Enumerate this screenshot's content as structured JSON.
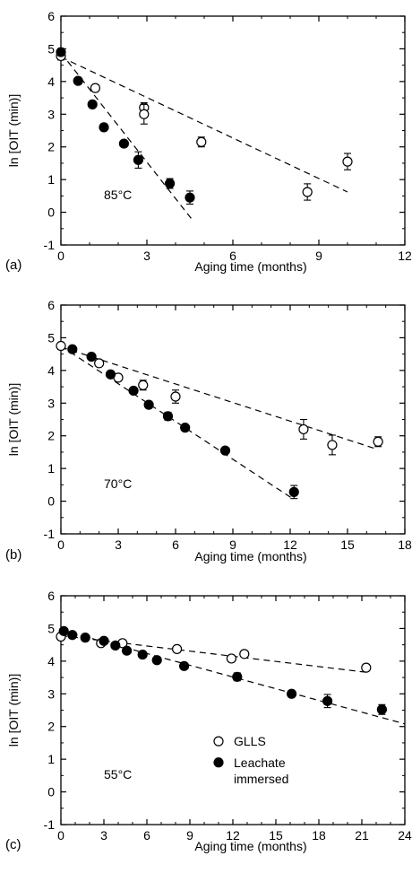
{
  "chart_data": [
    {
      "type": "scatter",
      "panel_label": "(a)",
      "temperature_label": "85°C",
      "xlabel": "Aging time  (months)",
      "ylabel": "ln [OIT (min)]",
      "xlim": [
        0,
        12
      ],
      "ylim": [
        -1,
        6
      ],
      "xticks": [
        "0",
        "3",
        "6",
        "9",
        "12"
      ],
      "yticks": [
        "-1",
        "0",
        "1",
        "2",
        "3",
        "4",
        "5",
        "6"
      ],
      "series": [
        {
          "name": "GLLS",
          "marker": "open-circle",
          "points": [
            {
              "x": 0,
              "y": 4.78,
              "err": 0.12
            },
            {
              "x": 1.2,
              "y": 3.8,
              "err": 0
            },
            {
              "x": 2.9,
              "y": 3.2,
              "err": 0.15
            },
            {
              "x": 2.9,
              "y": 3.0,
              "err": 0.3
            },
            {
              "x": 4.9,
              "y": 2.15,
              "err": 0.15
            },
            {
              "x": 8.6,
              "y": 0.62,
              "err": 0.25
            },
            {
              "x": 10.0,
              "y": 1.55,
              "err": 0.25
            }
          ],
          "fit": [
            [
              0,
              4.75
            ],
            [
              10,
              0.62
            ]
          ]
        },
        {
          "name": "Leachate immersed",
          "marker": "filled-circle",
          "points": [
            {
              "x": 0,
              "y": 4.9,
              "err": 0.1
            },
            {
              "x": 0.6,
              "y": 4.02,
              "err": 0
            },
            {
              "x": 1.1,
              "y": 3.3,
              "err": 0
            },
            {
              "x": 1.5,
              "y": 2.6,
              "err": 0.1
            },
            {
              "x": 2.2,
              "y": 2.1,
              "err": 0
            },
            {
              "x": 2.7,
              "y": 1.6,
              "err": 0.25
            },
            {
              "x": 3.8,
              "y": 0.88,
              "err": 0.15
            },
            {
              "x": 4.5,
              "y": 0.45,
              "err": 0.2
            }
          ],
          "fit": [
            [
              0,
              4.88
            ],
            [
              4.6,
              -0.25
            ]
          ]
        }
      ]
    },
    {
      "type": "scatter",
      "panel_label": "(b)",
      "temperature_label": "70°C",
      "xlabel": "Aging time   (months)",
      "ylabel": "ln [OIT (min)]",
      "xlim": [
        0,
        18
      ],
      "ylim": [
        -1,
        6
      ],
      "xticks": [
        "0",
        "3",
        "6",
        "9",
        "12",
        "15",
        "18"
      ],
      "yticks": [
        "-1",
        "0",
        "1",
        "2",
        "3",
        "4",
        "5",
        "6"
      ],
      "series": [
        {
          "name": "GLLS",
          "marker": "open-circle",
          "points": [
            {
              "x": 0,
              "y": 4.75,
              "err": 0.1
            },
            {
              "x": 2,
              "y": 4.22,
              "err": 0
            },
            {
              "x": 3,
              "y": 3.78,
              "err": 0
            },
            {
              "x": 4.3,
              "y": 3.55,
              "err": 0.15
            },
            {
              "x": 6,
              "y": 3.2,
              "err": 0.2
            },
            {
              "x": 12.7,
              "y": 2.2,
              "err": 0.3
            },
            {
              "x": 14.2,
              "y": 1.72,
              "err": 0.3
            },
            {
              "x": 16.6,
              "y": 1.82,
              "err": 0.15
            }
          ],
          "fit": [
            [
              0,
              4.72
            ],
            [
              16.6,
              1.58
            ]
          ]
        },
        {
          "name": "Leachate immersed",
          "marker": "filled-circle",
          "points": [
            {
              "x": 0.6,
              "y": 4.65,
              "err": 0
            },
            {
              "x": 1.6,
              "y": 4.42,
              "err": 0
            },
            {
              "x": 2.6,
              "y": 3.88,
              "err": 0
            },
            {
              "x": 3.8,
              "y": 3.38,
              "err": 0
            },
            {
              "x": 4.6,
              "y": 2.95,
              "err": 0
            },
            {
              "x": 5.6,
              "y": 2.6,
              "err": 0.12
            },
            {
              "x": 6.5,
              "y": 2.25,
              "err": 0
            },
            {
              "x": 8.6,
              "y": 1.55,
              "err": 0
            },
            {
              "x": 12.2,
              "y": 0.28,
              "err": 0.2
            }
          ],
          "fit": [
            [
              0,
              4.75
            ],
            [
              12.2,
              0.05
            ]
          ]
        }
      ]
    },
    {
      "type": "scatter",
      "panel_label": "(c)",
      "temperature_label": "55°C",
      "xlabel": "Aging time  (months)",
      "ylabel": "ln [OIT (min)]",
      "xlim": [
        0,
        24
      ],
      "ylim": [
        -1,
        6
      ],
      "xticks": [
        "0",
        "3",
        "6",
        "9",
        "12",
        "15",
        "18",
        "21",
        "24"
      ],
      "yticks": [
        "-1",
        "0",
        "1",
        "2",
        "3",
        "4",
        "5",
        "6"
      ],
      "legend": [
        {
          "label": "GLLS",
          "marker": "open-circle"
        },
        {
          "label": "Leachate",
          "label2": "immersed",
          "marker": "filled-circle"
        }
      ],
      "series": [
        {
          "name": "GLLS",
          "marker": "open-circle",
          "points": [
            {
              "x": 0,
              "y": 4.75,
              "err": 0
            },
            {
              "x": 2.8,
              "y": 4.55,
              "err": 0
            },
            {
              "x": 4.3,
              "y": 4.55,
              "err": 0
            },
            {
              "x": 8.1,
              "y": 4.37,
              "err": 0
            },
            {
              "x": 11.9,
              "y": 4.08,
              "err": 0
            },
            {
              "x": 12.8,
              "y": 4.22,
              "err": 0
            },
            {
              "x": 21.3,
              "y": 3.8,
              "err": 0.1
            }
          ],
          "fit": [
            [
              0,
              4.78
            ],
            [
              21.5,
              3.65
            ]
          ]
        },
        {
          "name": "Leachate immersed",
          "marker": "filled-circle",
          "points": [
            {
              "x": 0.2,
              "y": 4.92,
              "err": 0
            },
            {
              "x": 0.8,
              "y": 4.8,
              "err": 0
            },
            {
              "x": 1.7,
              "y": 4.72,
              "err": 0
            },
            {
              "x": 3.0,
              "y": 4.62,
              "err": 0
            },
            {
              "x": 3.8,
              "y": 4.48,
              "err": 0
            },
            {
              "x": 4.6,
              "y": 4.32,
              "err": 0
            },
            {
              "x": 5.7,
              "y": 4.2,
              "err": 0
            },
            {
              "x": 6.7,
              "y": 4.03,
              "err": 0
            },
            {
              "x": 8.6,
              "y": 3.85,
              "err": 0
            },
            {
              "x": 12.3,
              "y": 3.52,
              "err": 0.12
            },
            {
              "x": 16.1,
              "y": 3.0,
              "err": 0.1
            },
            {
              "x": 18.6,
              "y": 2.78,
              "err": 0.2
            },
            {
              "x": 22.4,
              "y": 2.52,
              "err": 0.15
            }
          ],
          "fit": [
            [
              0,
              4.95
            ],
            [
              24,
              2.08
            ]
          ]
        }
      ]
    }
  ]
}
